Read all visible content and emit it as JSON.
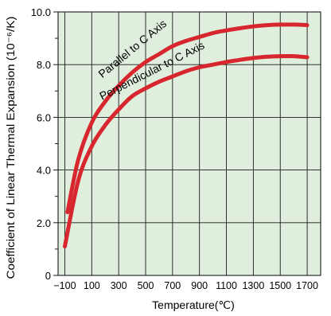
{
  "chart_data": {
    "type": "line",
    "title": "",
    "xlabel": "Temperature(℃)",
    "ylabel": "Coefficient of Linear Thermal Expansion (10⁻⁶/K)",
    "xlim": [
      -150,
      1800
    ],
    "ylim": [
      0,
      10
    ],
    "x_ticks": [
      -100,
      100,
      300,
      500,
      700,
      900,
      1100,
      1300,
      1500,
      1700
    ],
    "x_tick_labels": [
      "−100",
      "100",
      "300",
      "500",
      "700",
      "900",
      "1100",
      "1300",
      "1500",
      "1700"
    ],
    "y_ticks": [
      0,
      2,
      4,
      6,
      8,
      10
    ],
    "y_tick_labels": [
      "0",
      "2.0",
      "4.0",
      "6.0",
      "8.0",
      "10.0"
    ],
    "grid": true,
    "background_color": "#dfeedd",
    "line_color": "#d8262f",
    "series": [
      {
        "name": "Parallel to C Axis",
        "x": [
          -80,
          0,
          100,
          200,
          300,
          400,
          500,
          600,
          700,
          800,
          900,
          1000,
          1100,
          1200,
          1300,
          1400,
          1500,
          1600,
          1700
        ],
        "y": [
          2.4,
          4.4,
          5.8,
          6.6,
          7.2,
          7.7,
          8.1,
          8.4,
          8.7,
          8.9,
          9.05,
          9.2,
          9.3,
          9.38,
          9.45,
          9.5,
          9.52,
          9.52,
          9.5
        ]
      },
      {
        "name": "Perpendicular to C Axis",
        "x": [
          -100,
          0,
          100,
          200,
          300,
          400,
          500,
          600,
          700,
          800,
          900,
          1000,
          1100,
          1200,
          1300,
          1400,
          1500,
          1600,
          1700
        ],
        "y": [
          1.1,
          3.6,
          4.9,
          5.7,
          6.3,
          6.8,
          7.1,
          7.35,
          7.55,
          7.75,
          7.9,
          8.0,
          8.1,
          8.18,
          8.25,
          8.3,
          8.32,
          8.32,
          8.28
        ]
      }
    ]
  }
}
